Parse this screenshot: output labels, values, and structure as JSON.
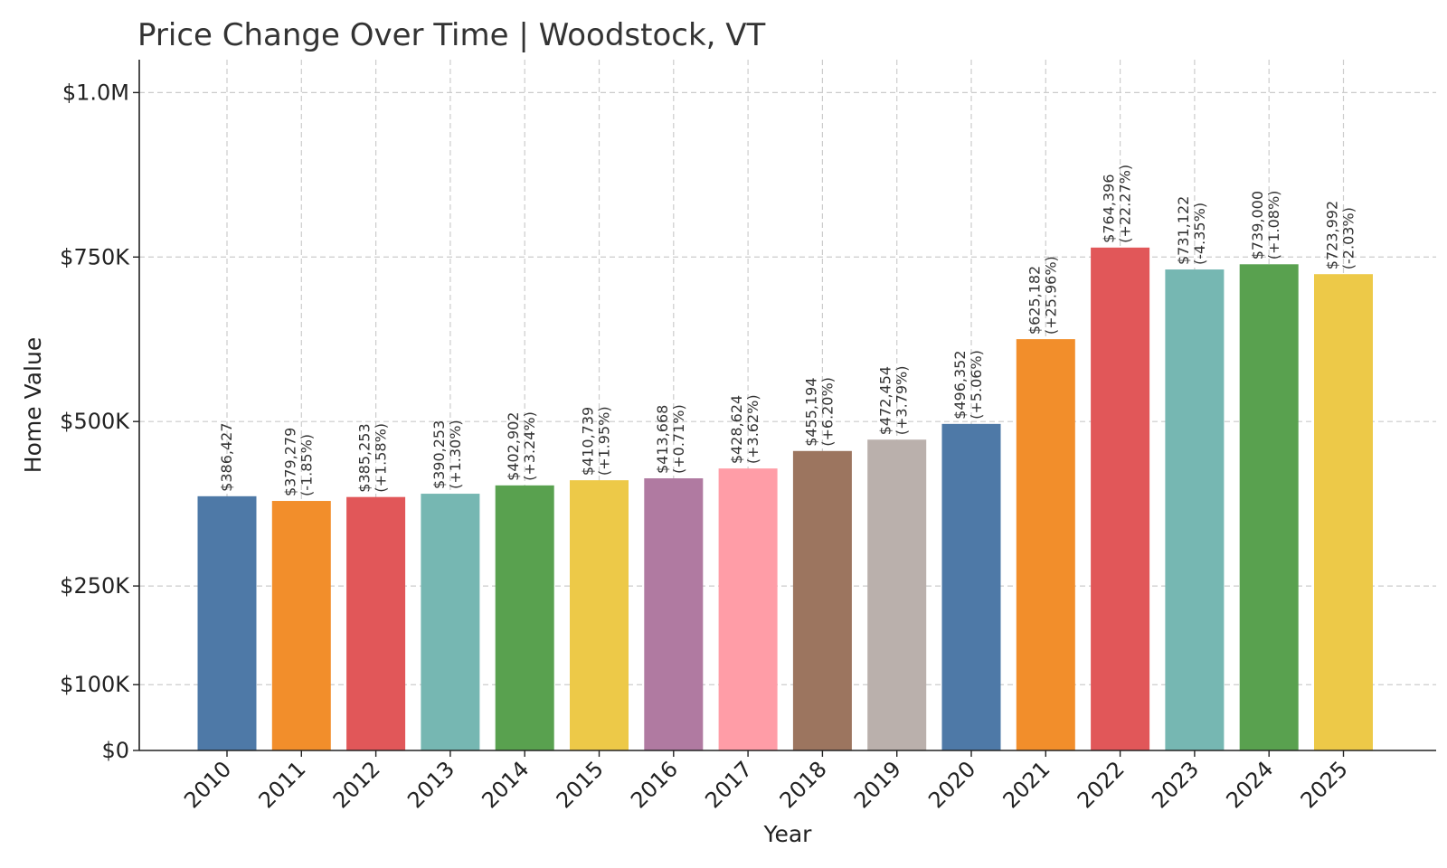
{
  "chart_data": {
    "type": "bar",
    "title": "Price Change Over Time | Woodstock, VT",
    "xlabel": "Year",
    "ylabel": "Home Value",
    "ylim": [
      0,
      1050000
    ],
    "grid": true,
    "categories": [
      "2010",
      "2011",
      "2012",
      "2013",
      "2014",
      "2015",
      "2016",
      "2017",
      "2018",
      "2019",
      "2020",
      "2021",
      "2022",
      "2023",
      "2024",
      "2025"
    ],
    "values": [
      386427,
      379279,
      385253,
      390253,
      402902,
      410739,
      413668,
      428624,
      455194,
      472454,
      496352,
      625182,
      764396,
      731122,
      739000,
      723992
    ],
    "value_labels": [
      "$386,427",
      "$379,279",
      "$385,253",
      "$390,253",
      "$402,902",
      "$410,739",
      "$413,668",
      "$428,624",
      "$455,194",
      "$472,454",
      "$496,352",
      "$625,182",
      "$764,396",
      "$731,122",
      "$739,000",
      "$723,992"
    ],
    "change_labels": [
      "",
      "(-1.85%)",
      "(+1.58%)",
      "(+1.30%)",
      "(+3.24%)",
      "(+1.95%)",
      "(+0.71%)",
      "(+3.62%)",
      "(+6.20%)",
      "(+3.79%)",
      "(+5.06%)",
      "(+25.96%)",
      "(+22.27%)",
      "(-4.35%)",
      "(+1.08%)",
      "(-2.03%)"
    ],
    "colors": [
      "#4e79a7",
      "#f28e2b",
      "#e15759",
      "#76b7b2",
      "#59a14f",
      "#edc948",
      "#b07aa1",
      "#ff9da7",
      "#9c755f",
      "#bab0ac",
      "#4e79a7",
      "#f28e2b",
      "#e15759",
      "#76b7b2",
      "#59a14f",
      "#edc948"
    ],
    "yticks": [
      {
        "value": 0,
        "label": "$0"
      },
      {
        "value": 100000,
        "label": "$100K"
      },
      {
        "value": 250000,
        "label": "$250K"
      },
      {
        "value": 500000,
        "label": "$500K"
      },
      {
        "value": 750000,
        "label": "$750K"
      },
      {
        "value": 1000000,
        "label": "$1.0M"
      }
    ]
  }
}
